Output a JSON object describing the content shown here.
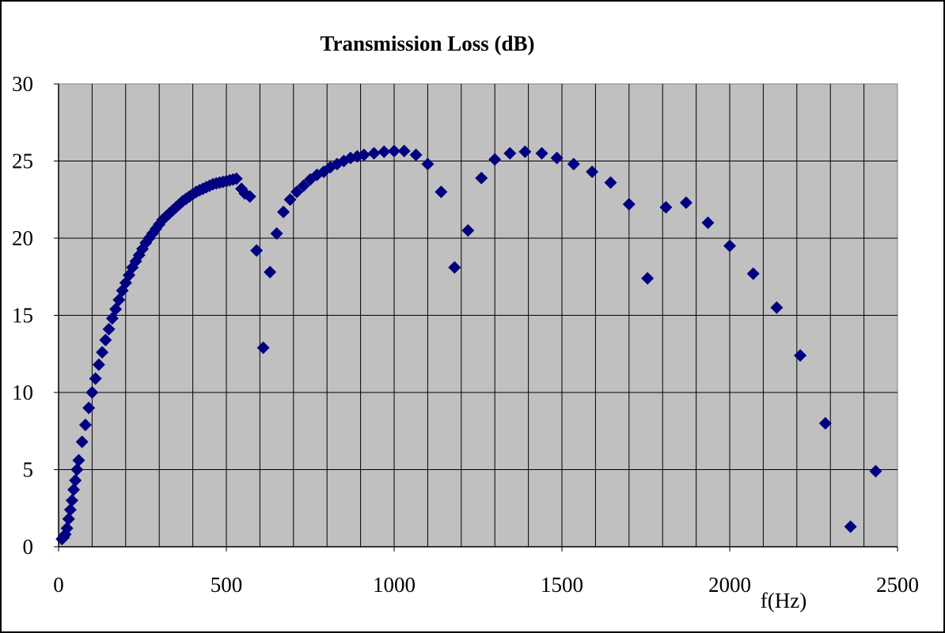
{
  "chart_data": {
    "type": "scatter",
    "title": "Transmission Loss (dB)",
    "xlabel": "f(Hz)",
    "ylabel": "",
    "xlim": [
      0,
      2500
    ],
    "ylim": [
      0,
      30
    ],
    "x_ticks": [
      0,
      500,
      1000,
      1500,
      2000,
      2500
    ],
    "y_ticks": [
      0,
      5,
      10,
      15,
      20,
      25,
      30
    ],
    "x_tick_labels": [
      "0",
      "500",
      "1000",
      "1500",
      "2000",
      "2500"
    ],
    "y_tick_labels": [
      "0",
      "5",
      "10",
      "15",
      "20",
      "25",
      "30"
    ],
    "x_grid_step": 100,
    "grid": true,
    "legend": "none",
    "colors": {
      "marker": "#000080",
      "plot_bg": "#c0c0c0",
      "grid": "#000000",
      "page_bg": "#ffffff"
    },
    "series": [
      {
        "name": "Transmission Loss",
        "marker": "diamond",
        "x": [
          10,
          15,
          20,
          25,
          30,
          35,
          40,
          45,
          50,
          55,
          60,
          70,
          80,
          90,
          100,
          110,
          120,
          130,
          140,
          150,
          160,
          170,
          180,
          190,
          200,
          210,
          220,
          230,
          240,
          250,
          260,
          270,
          280,
          290,
          300,
          310,
          320,
          330,
          340,
          350,
          360,
          370,
          380,
          390,
          400,
          410,
          420,
          430,
          440,
          450,
          460,
          470,
          480,
          490,
          500,
          510,
          520,
          530,
          545,
          555,
          570,
          590,
          610,
          630,
          650,
          670,
          690,
          710,
          730,
          750,
          770,
          790,
          810,
          830,
          850,
          870,
          890,
          910,
          940,
          970,
          1000,
          1030,
          1065,
          1100,
          1140,
          1180,
          1220,
          1260,
          1300,
          1345,
          1390,
          1440,
          1485,
          1535,
          1590,
          1645,
          1700,
          1755,
          1810,
          1870,
          1935,
          2000,
          2070,
          2140,
          2210,
          2285,
          2360,
          2435
        ],
        "y": [
          0.5,
          0.6,
          0.8,
          1.2,
          1.8,
          2.4,
          3.0,
          3.7,
          4.3,
          5.0,
          5.6,
          6.8,
          7.9,
          9.0,
          10.0,
          10.9,
          11.8,
          12.6,
          13.4,
          14.1,
          14.8,
          15.4,
          16.0,
          16.6,
          17.1,
          17.6,
          18.1,
          18.5,
          18.9,
          19.3,
          19.7,
          20.0,
          20.3,
          20.6,
          20.9,
          21.2,
          21.4,
          21.6,
          21.8,
          22.0,
          22.2,
          22.4,
          22.55,
          22.7,
          22.85,
          23.0,
          23.1,
          23.2,
          23.3,
          23.4,
          23.5,
          23.55,
          23.6,
          23.65,
          23.7,
          23.75,
          23.8,
          23.85,
          23.2,
          22.9,
          22.7,
          19.2,
          12.9,
          17.8,
          20.3,
          21.7,
          22.5,
          23.0,
          23.4,
          23.8,
          24.1,
          24.3,
          24.6,
          24.8,
          25.0,
          25.2,
          25.3,
          25.4,
          25.5,
          25.6,
          25.65,
          25.65,
          25.4,
          24.8,
          23.0,
          18.1,
          20.5,
          23.9,
          25.1,
          25.5,
          25.6,
          25.5,
          25.2,
          24.8,
          24.3,
          23.6,
          22.2,
          17.4,
          22.0,
          22.3,
          21.0,
          19.5,
          17.7,
          15.5,
          12.4,
          8.0,
          1.3,
          4.9
        ]
      }
    ]
  }
}
